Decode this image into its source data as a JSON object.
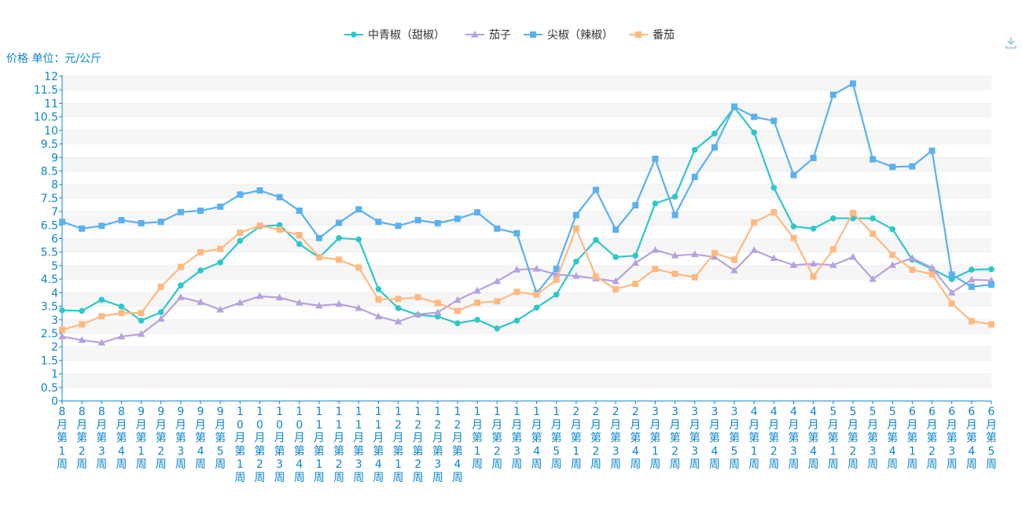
{
  "chart_data": {
    "type": "line",
    "ylabel": "价格 单位：元/公斤",
    "ylim": [
      0,
      12
    ],
    "yticks": [
      "0",
      "0.5",
      "1",
      "1.5",
      "2",
      "2.5",
      "3",
      "3.5",
      "4",
      "4.5",
      "5",
      "5.5",
      "6",
      "6.5",
      "7",
      "7.5",
      "8",
      "8.5",
      "9",
      "9.5",
      "10",
      "10.5",
      "11",
      "11.5",
      "12"
    ],
    "categories": [
      "8月第1周",
      "8月第2周",
      "8月第3周",
      "8月第4周",
      "9月第1周",
      "9月第2周",
      "9月第3周",
      "9月第4周",
      "9月第5周",
      "10月第1周",
      "10月第2周",
      "10月第3周",
      "10月第4周",
      "11月第1周",
      "11月第2周",
      "11月第3周",
      "11月第4周",
      "12月第1周",
      "12月第2周",
      "12月第3周",
      "12月第4周",
      "1月第1周",
      "1月第2周",
      "1月第3周",
      "1月第4周",
      "1月第5周",
      "2月第1周",
      "2月第2周",
      "2月第3周",
      "2月第4周",
      "3月第1周",
      "3月第2周",
      "3月第3周",
      "3月第4周",
      "3月第5周",
      "4月第1周",
      "4月第2周",
      "4月第3周",
      "4月第4周",
      "5月第1周",
      "5月第2周",
      "5月第3周",
      "5月第4周",
      "6月第1周",
      "6月第2周",
      "6月第3周",
      "6月第4周",
      "6月第5周"
    ],
    "legend_position": "top-center",
    "series": [
      {
        "name": "中青椒（甜椒）",
        "color": "#2ec7c9",
        "marker": "circle",
        "values": [
          3.35,
          3.33,
          3.74,
          3.49,
          2.97,
          3.28,
          4.27,
          4.82,
          5.12,
          5.92,
          6.45,
          6.5,
          5.8,
          5.3,
          6.02,
          5.97,
          4.13,
          3.43,
          3.18,
          3.12,
          2.87,
          3.0,
          2.68,
          2.97,
          3.45,
          3.93,
          5.15,
          5.95,
          5.32,
          5.37,
          7.3,
          7.55,
          9.28,
          9.88,
          10.85,
          9.92,
          7.88,
          6.45,
          6.37,
          6.75,
          6.75,
          6.75,
          6.35,
          5.22,
          4.88,
          4.5,
          4.85,
          4.87
        ]
      },
      {
        "name": "茄子",
        "color": "#b6a2de",
        "marker": "triangle",
        "values": [
          2.38,
          2.25,
          2.15,
          2.38,
          2.47,
          3.03,
          3.83,
          3.65,
          3.37,
          3.63,
          3.87,
          3.82,
          3.63,
          3.52,
          3.58,
          3.43,
          3.12,
          2.93,
          3.2,
          3.27,
          3.73,
          4.07,
          4.42,
          4.85,
          4.88,
          4.67,
          4.62,
          4.52,
          4.42,
          5.1,
          5.58,
          5.37,
          5.42,
          5.32,
          4.82,
          5.57,
          5.27,
          5.02,
          5.07,
          5.02,
          5.32,
          4.5,
          5.02,
          5.28,
          4.92,
          4.0,
          4.48,
          4.45
        ]
      },
      {
        "name": "尖椒（辣椒）",
        "color": "#5ab1ef",
        "marker": "square",
        "values": [
          6.62,
          6.37,
          6.47,
          6.68,
          6.57,
          6.62,
          6.98,
          7.03,
          7.18,
          7.63,
          7.78,
          7.53,
          7.03,
          6.02,
          6.58,
          7.08,
          6.62,
          6.47,
          6.68,
          6.57,
          6.73,
          6.97,
          6.37,
          6.2,
          3.98,
          4.88,
          6.87,
          7.8,
          6.33,
          7.23,
          8.95,
          6.87,
          8.28,
          9.37,
          10.88,
          10.5,
          10.35,
          8.35,
          8.98,
          11.32,
          11.73,
          8.93,
          8.65,
          8.67,
          9.25,
          4.67,
          4.22,
          4.3
        ]
      },
      {
        "name": "番茄",
        "color": "#ffb980",
        "marker": "square",
        "values": [
          2.63,
          2.83,
          3.13,
          3.25,
          3.25,
          4.22,
          4.95,
          5.5,
          5.62,
          6.22,
          6.48,
          6.33,
          6.13,
          5.32,
          5.22,
          4.93,
          3.75,
          3.77,
          3.83,
          3.62,
          3.33,
          3.63,
          3.68,
          4.03,
          3.93,
          4.48,
          6.37,
          4.6,
          4.13,
          4.33,
          4.88,
          4.7,
          4.57,
          5.47,
          5.22,
          6.6,
          6.97,
          6.02,
          4.6,
          5.6,
          6.95,
          6.18,
          5.4,
          4.85,
          4.68,
          3.6,
          2.95,
          2.83
        ]
      }
    ]
  },
  "toolbox": {
    "download_icon": "download-icon"
  }
}
